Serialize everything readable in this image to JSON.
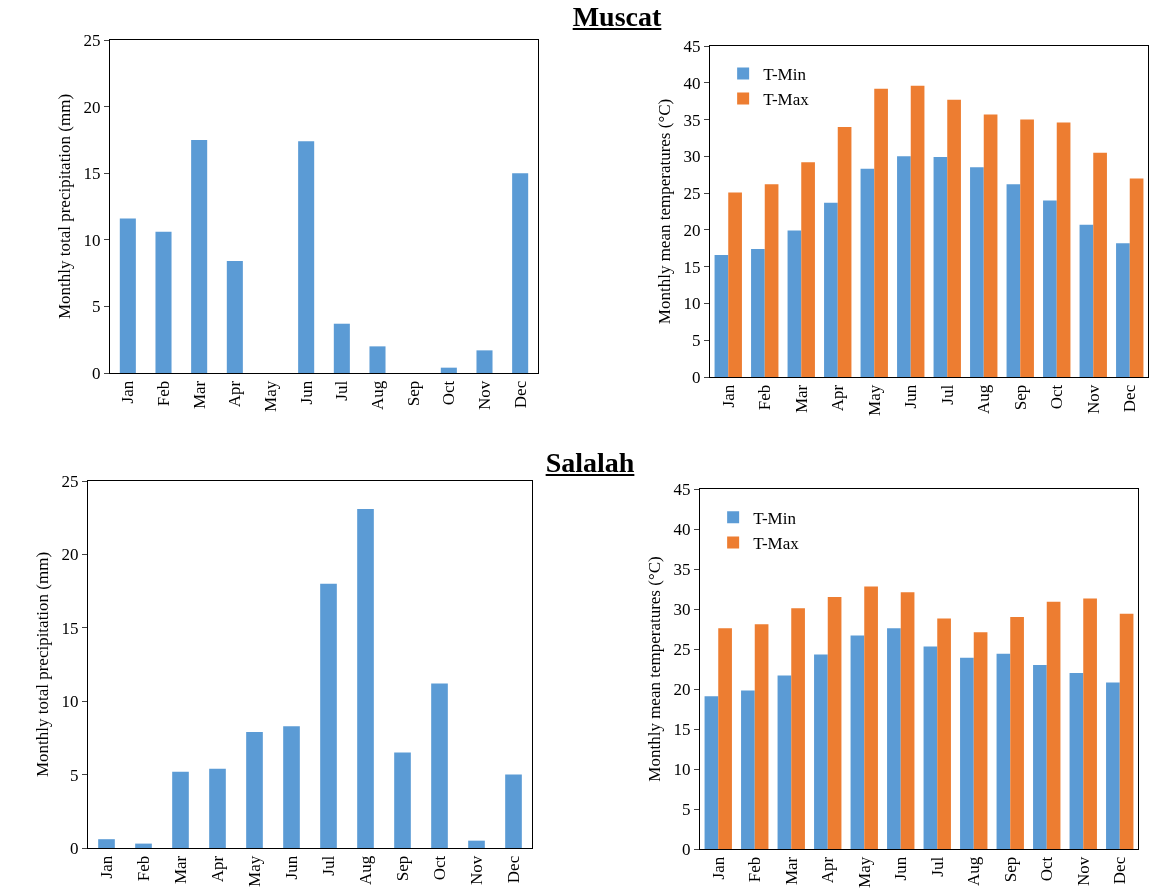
{
  "chart_data": [
    {
      "type": "bar",
      "ylabel": "Monthly total precipitation (mm)",
      "categories": [
        "Jan",
        "Feb",
        "Mar",
        "Apr",
        "May",
        "Jun",
        "Jul",
        "Aug",
        "Sep",
        "Oct",
        "Nov",
        "Dec"
      ],
      "series": [
        {
          "color": "#5b9bd5",
          "values": [
            11.6,
            10.6,
            17.5,
            8.4,
            0,
            17.4,
            3.7,
            2.0,
            0,
            0.4,
            1.7,
            15.0
          ]
        }
      ],
      "ylim": [
        0,
        25
      ],
      "yticks": [
        0,
        5,
        10,
        15,
        20,
        25
      ],
      "grid": false,
      "legend": false
    },
    {
      "type": "bar",
      "title": "Muscat",
      "ylabel": "Monthly mean temperatures (°C)",
      "categories": [
        "Jan",
        "Feb",
        "Mar",
        "Apr",
        "May",
        "Jun",
        "Jul",
        "Aug",
        "Sep",
        "Oct",
        "Nov",
        "Dec"
      ],
      "series": [
        {
          "name": "T-Min",
          "color": "#5b9bd5",
          "values": [
            16.6,
            17.4,
            19.9,
            23.7,
            28.3,
            30.0,
            29.9,
            28.5,
            26.2,
            24.0,
            20.7,
            18.2
          ]
        },
        {
          "name": "T-Max",
          "color": "#ed7d31",
          "values": [
            25.1,
            26.2,
            29.2,
            34.0,
            39.2,
            39.6,
            37.7,
            35.7,
            35.0,
            34.6,
            30.5,
            27.0
          ]
        }
      ],
      "ylim": [
        0,
        45
      ],
      "yticks": [
        0,
        5,
        10,
        15,
        20,
        25,
        30,
        35,
        40,
        45
      ],
      "grid": false,
      "legend": "top left"
    },
    {
      "type": "bar",
      "ylabel": "Monthly total precipitation (mm)",
      "categories": [
        "Jan",
        "Feb",
        "Mar",
        "Apr",
        "May",
        "Jun",
        "Jul",
        "Aug",
        "Sep",
        "Oct",
        "Nov",
        "Dec"
      ],
      "series": [
        {
          "color": "#5b9bd5",
          "values": [
            0.6,
            0.3,
            5.2,
            5.4,
            7.9,
            8.3,
            18.0,
            23.1,
            6.5,
            11.2,
            0.5,
            5.0
          ]
        }
      ],
      "ylim": [
        0,
        25
      ],
      "yticks": [
        0,
        5,
        10,
        15,
        20,
        25
      ],
      "grid": false,
      "legend": false
    },
    {
      "type": "bar",
      "title": "Salalah",
      "ylabel": "Monthly mean temperatures (°C)",
      "categories": [
        "Jan",
        "Feb",
        "Mar",
        "Apr",
        "May",
        "Jun",
        "Jul",
        "Aug",
        "Sep",
        "Oct",
        "Nov",
        "Dec"
      ],
      "series": [
        {
          "name": "T-Min",
          "color": "#5b9bd5",
          "values": [
            19.1,
            19.8,
            21.7,
            24.3,
            26.7,
            27.6,
            25.3,
            23.9,
            24.4,
            23.0,
            22.0,
            20.8
          ]
        },
        {
          "name": "T-Max",
          "color": "#ed7d31",
          "values": [
            27.6,
            28.1,
            30.1,
            31.5,
            32.8,
            32.1,
            28.8,
            27.1,
            29.0,
            30.9,
            31.3,
            29.4
          ]
        }
      ],
      "ylim": [
        0,
        45
      ],
      "yticks": [
        0,
        5,
        10,
        15,
        20,
        25,
        30,
        35,
        40,
        45
      ],
      "grid": false,
      "legend": "top left"
    }
  ]
}
